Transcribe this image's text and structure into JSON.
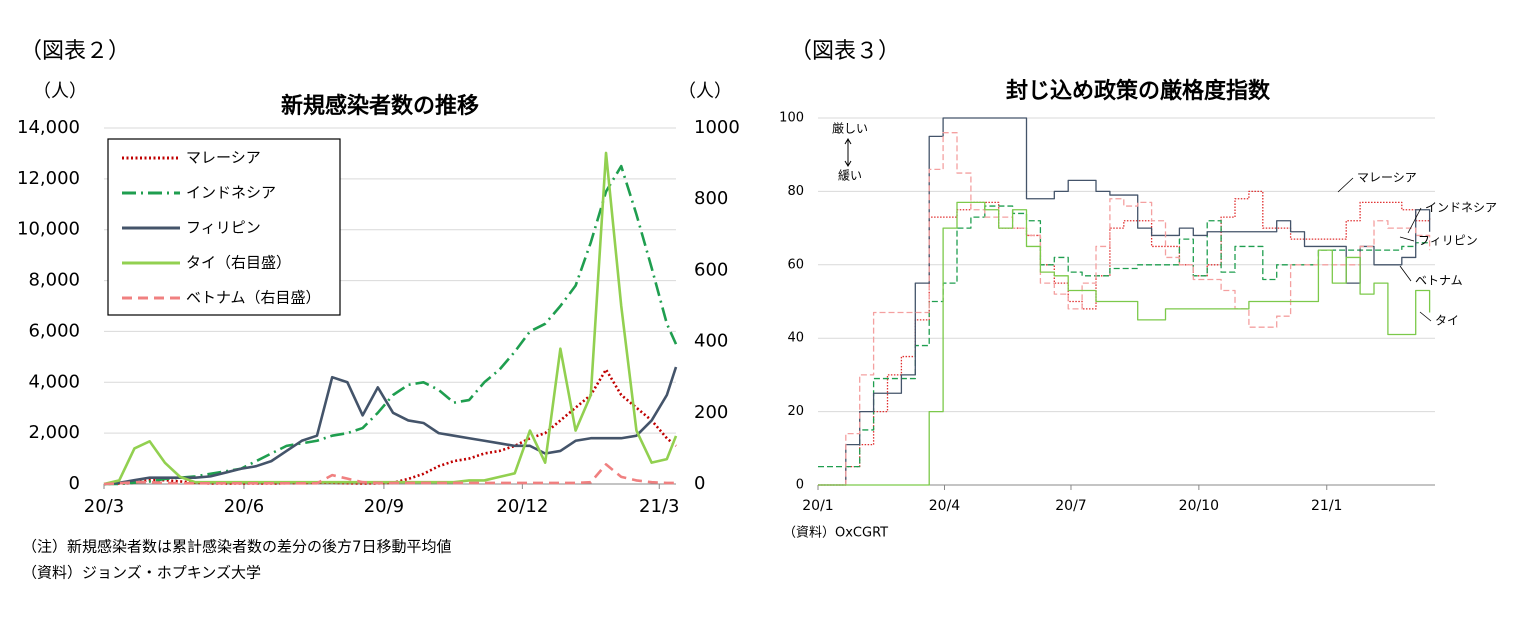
{
  "chart_data": [
    {
      "type": "line",
      "figure_label": "（図表２）",
      "title": "新規感染者数の推移",
      "y_label": "（人）",
      "y2_label": "（人）",
      "notes": [
        "（注）新規感染者数は累計感染者数の差分の後方7日移動平均値",
        "（資料）ジョンズ・ホプキンズ大学"
      ],
      "x": [
        0,
        10,
        20,
        30,
        40,
        50,
        60,
        70,
        80,
        90,
        100,
        110,
        120,
        130,
        140,
        150,
        160,
        170,
        180,
        190,
        200,
        210,
        220,
        230,
        240,
        250,
        260,
        270,
        280,
        290,
        300,
        310,
        320,
        330,
        340,
        350,
        360,
        370,
        376
      ],
      "xlim": [
        0,
        376
      ],
      "xticks": [
        {
          "value": 0,
          "label": "20/3"
        },
        {
          "value": 92,
          "label": "20/6"
        },
        {
          "value": 184,
          "label": "20/9"
        },
        {
          "value": 275,
          "label": "20/12"
        },
        {
          "value": 365,
          "label": "21/3"
        }
      ],
      "ylim": [
        0,
        14000
      ],
      "yticks": [
        0,
        {
          "value": 2000,
          "label": "2,000"
        },
        {
          "value": 4000,
          "label": "4,000"
        },
        {
          "value": 6000,
          "label": "6,000"
        },
        {
          "value": 8000,
          "label": "8,000"
        },
        {
          "value": 10000,
          "label": "10,000"
        },
        {
          "value": 12000,
          "label": "12,000"
        },
        {
          "value": 14000,
          "label": "14,000"
        }
      ],
      "y2lim": [
        0,
        1000
      ],
      "y2ticks": [
        0,
        200,
        400,
        600,
        800,
        1000
      ],
      "grid": true,
      "legend": "upper left",
      "series": [
        {
          "name": "マレーシア",
          "color": "#c00000",
          "dash": "dotted",
          "values": [
            0,
            20,
            50,
            150,
            150,
            100,
            50,
            20,
            20,
            20,
            20,
            20,
            30,
            40,
            50,
            50,
            30,
            20,
            30,
            50,
            200,
            400,
            700,
            900,
            1000,
            1200,
            1300,
            1500,
            1800,
            2000,
            2500,
            3000,
            3500,
            4500,
            3500,
            3000,
            2500,
            1800,
            1500
          ]
        },
        {
          "name": "インドネシア",
          "color": "#1f9e4f",
          "dash": "dashdot",
          "values": [
            0,
            0,
            50,
            100,
            200,
            250,
            300,
            400,
            500,
            600,
            900,
            1200,
            1500,
            1600,
            1700,
            1900,
            2000,
            2200,
            2800,
            3500,
            3900,
            4000,
            3700,
            3200,
            3300,
            4000,
            4500,
            5200,
            6000,
            6300,
            7000,
            7800,
            9500,
            11500,
            12500,
            10600,
            8500,
            6300,
            5500
          ]
        },
        {
          "name": "フィリピン",
          "color": "#44546a",
          "dash": "solid",
          "values": [
            0,
            50,
            150,
            250,
            250,
            250,
            250,
            300,
            450,
            600,
            700,
            900,
            1300,
            1700,
            1900,
            4200,
            4000,
            2700,
            3800,
            2800,
            2500,
            2400,
            2000,
            1900,
            1800,
            1700,
            1600,
            1500,
            1500,
            1200,
            1300,
            1700,
            1800,
            1800,
            1800,
            1900,
            2500,
            3500,
            4600
          ]
        },
        {
          "name": "タイ（右目盛）",
          "color": "#92d050",
          "dash": "solid",
          "axis": "y2",
          "values": [
            0,
            10,
            100,
            120,
            60,
            20,
            5,
            5,
            5,
            5,
            5,
            5,
            5,
            5,
            5,
            5,
            5,
            5,
            5,
            5,
            5,
            5,
            5,
            5,
            10,
            10,
            20,
            30,
            150,
            60,
            380,
            150,
            250,
            930,
            500,
            150,
            60,
            70,
            135
          ]
        },
        {
          "name": "ベトナム（右目盛）",
          "color": "#f08080",
          "dash": "dashed",
          "axis": "y2",
          "values": [
            0,
            2,
            5,
            5,
            3,
            2,
            2,
            2,
            2,
            2,
            2,
            2,
            2,
            2,
            2,
            25,
            15,
            5,
            3,
            3,
            3,
            3,
            3,
            3,
            3,
            3,
            3,
            3,
            3,
            3,
            3,
            3,
            5,
            55,
            20,
            10,
            5,
            3,
            3
          ]
        }
      ]
    },
    {
      "type": "line",
      "step": true,
      "figure_label": "（図表３）",
      "title": "封じ込め政策の厳格度指数",
      "annotations": [
        "厳しい",
        "緩い"
      ],
      "notes": [
        "（資料）OxCGRT"
      ],
      "x": [
        0,
        10,
        20,
        30,
        40,
        50,
        60,
        70,
        80,
        90,
        100,
        110,
        120,
        130,
        140,
        150,
        160,
        170,
        180,
        190,
        200,
        210,
        220,
        230,
        240,
        250,
        260,
        270,
        280,
        290,
        300,
        310,
        320,
        330,
        340,
        350,
        360,
        370,
        380,
        390,
        400,
        410,
        420,
        430,
        440
      ],
      "xlim": [
        0,
        441
      ],
      "xticks": [
        {
          "value": 0,
          "label": "20/1"
        },
        {
          "value": 91,
          "label": "20/4"
        },
        {
          "value": 182,
          "label": "20/7"
        },
        {
          "value": 274,
          "label": "20/10"
        },
        {
          "value": 366,
          "label": "21/1"
        }
      ],
      "ylim": [
        0,
        100
      ],
      "yticks": [
        0,
        20,
        40,
        60,
        80,
        100
      ],
      "grid": true,
      "direct_labels": true,
      "series": [
        {
          "name": "マレーシア",
          "color": "#e03030",
          "dash": "dotted",
          "values": [
            0,
            0,
            5,
            11,
            20,
            30,
            35,
            45,
            73,
            73,
            75,
            77,
            77,
            70,
            70,
            68,
            60,
            55,
            50,
            48,
            57,
            70,
            72,
            72,
            65,
            65,
            60,
            57,
            60,
            73,
            78,
            80,
            70,
            70,
            67,
            67,
            67,
            67,
            72,
            77,
            77,
            77,
            75,
            72,
            73
          ]
        },
        {
          "name": "インドネシア",
          "color": "#1f9e4f",
          "dash": "dashed",
          "values": [
            5,
            5,
            5,
            15,
            29,
            29,
            29,
            38,
            50,
            55,
            70,
            73,
            76,
            76,
            74,
            72,
            60,
            62,
            58,
            57,
            57,
            59,
            59,
            60,
            60,
            60,
            67,
            57,
            72,
            58,
            65,
            65,
            56,
            60,
            60,
            60,
            64,
            64,
            64,
            64,
            64,
            64,
            65,
            66,
            66
          ]
        },
        {
          "name": "フィリピン",
          "color": "#44546a",
          "dash": "solid",
          "values": [
            0,
            0,
            11,
            20,
            25,
            25,
            30,
            55,
            95,
            100,
            100,
            100,
            100,
            100,
            100,
            78,
            78,
            80,
            83,
            83,
            80,
            79,
            79,
            70,
            68,
            68,
            70,
            68,
            69,
            69,
            69,
            69,
            69,
            72,
            69,
            65,
            65,
            65,
            55,
            65,
            60,
            60,
            62,
            75,
            69
          ]
        },
        {
          "name": "ベトナム",
          "color": "#f4a0a0",
          "dash": "dashed",
          "values": [
            0,
            0,
            14,
            30,
            47,
            47,
            47,
            47,
            86,
            96,
            85,
            75,
            73,
            73,
            70,
            68,
            55,
            52,
            48,
            55,
            65,
            78,
            76,
            77,
            72,
            62,
            60,
            56,
            56,
            53,
            48,
            43,
            43,
            46,
            60,
            60,
            60,
            60,
            60,
            65,
            72,
            70,
            70,
            68,
            64
          ]
        },
        {
          "name": "タイ",
          "color": "#7cc94a",
          "dash": "solid",
          "values": [
            0,
            0,
            0,
            0,
            0,
            0,
            0,
            0,
            20,
            70,
            77,
            77,
            75,
            70,
            75,
            65,
            58,
            57,
            53,
            53,
            50,
            50,
            50,
            45,
            45,
            48,
            48,
            48,
            48,
            48,
            48,
            50,
            50,
            50,
            50,
            50,
            64,
            55,
            62,
            52,
            55,
            41,
            41,
            53,
            47
          ]
        }
      ]
    }
  ]
}
